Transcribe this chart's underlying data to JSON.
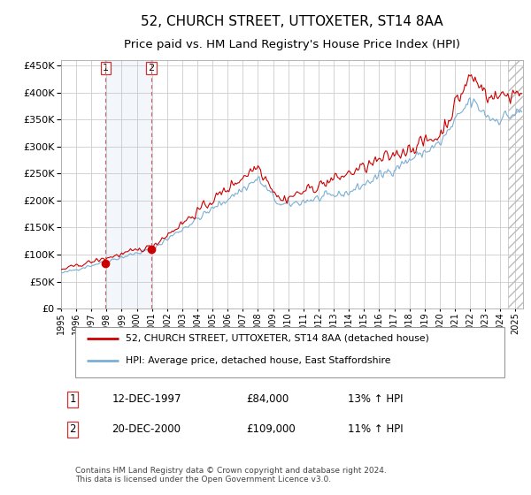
{
  "title": "52, CHURCH STREET, UTTOXETER, ST14 8AA",
  "subtitle": "Price paid vs. HM Land Registry's House Price Index (HPI)",
  "title_fontsize": 11,
  "subtitle_fontsize": 9.5,
  "ytick_values": [
    0,
    50000,
    100000,
    150000,
    200000,
    250000,
    300000,
    350000,
    400000,
    450000
  ],
  "ylim": [
    0,
    460000
  ],
  "xlim_start": 1995.0,
  "xlim_end": 2025.5,
  "background_color": "#ffffff",
  "plot_bg_color": "#ffffff",
  "grid_color": "#cccccc",
  "red_line_color": "#cc0000",
  "blue_line_color": "#7bafd4",
  "purchase1_x": 1997.95,
  "purchase1_y": 84000,
  "purchase2_x": 2000.97,
  "purchase2_y": 109000,
  "purchase1_date": "12-DEC-1997",
  "purchase1_price": "£84,000",
  "purchase1_hpi": "13% ↑ HPI",
  "purchase2_date": "20-DEC-2000",
  "purchase2_price": "£109,000",
  "purchase2_hpi": "11% ↑ HPI",
  "legend_line1": "52, CHURCH STREET, UTTOXETER, ST14 8AA (detached house)",
  "legend_line2": "HPI: Average price, detached house, East Staffordshire",
  "footer": "Contains HM Land Registry data © Crown copyright and database right 2024.\nThis data is licensed under the Open Government Licence v3.0."
}
